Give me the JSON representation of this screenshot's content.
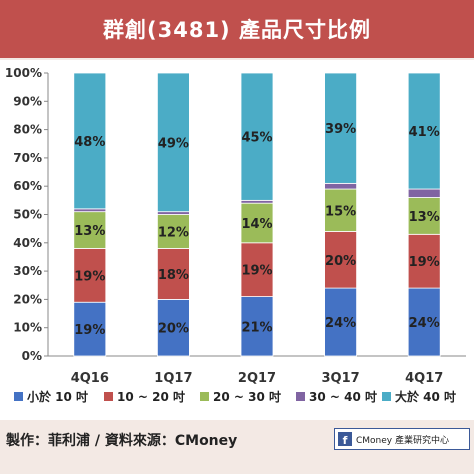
{
  "title": "群創(3481) 產品尺寸比例",
  "footer": {
    "credit": "製作：菲利浦 / 資料來源：CMoney",
    "brand_icon": "f",
    "brand_text": "CMoney 產業研究中心"
  },
  "chart_data": {
    "type": "bar",
    "stacked": true,
    "categories": [
      "4Q16",
      "1Q17",
      "2Q17",
      "3Q17",
      "4Q17"
    ],
    "ylim": [
      0,
      100
    ],
    "yticks": [
      "0%",
      "10%",
      "20%",
      "30%",
      "40%",
      "50%",
      "60%",
      "70%",
      "80%",
      "90%",
      "100%"
    ],
    "grid": false,
    "legend_position": "bottom",
    "series": [
      {
        "name": "小於 10 吋",
        "color": "#4472c4",
        "values": [
          19,
          20,
          21,
          24,
          24
        ],
        "labels": [
          "19%",
          "20%",
          "21%",
          "24%",
          "24%"
        ]
      },
      {
        "name": "10 ~ 20 吋",
        "color": "#c0504d",
        "values": [
          19,
          18,
          19,
          20,
          19
        ],
        "labels": [
          "19%",
          "18%",
          "19%",
          "20%",
          "19%"
        ]
      },
      {
        "name": "20 ~ 30 吋",
        "color": "#9bbb59",
        "values": [
          13,
          12,
          14,
          15,
          13
        ],
        "labels": [
          "13%",
          "12%",
          "14%",
          "15%",
          "13%"
        ]
      },
      {
        "name": "30 ~ 40 吋",
        "color": "#8064a2",
        "values": [
          1,
          1,
          1,
          2,
          3
        ],
        "labels": [
          "",
          "",
          "",
          "",
          ""
        ]
      },
      {
        "name": "大於 40 吋",
        "color": "#4bacc6",
        "values": [
          48,
          49,
          45,
          39,
          41
        ],
        "labels": [
          "48%",
          "49%",
          "45%",
          "39%",
          "41%"
        ]
      }
    ]
  }
}
